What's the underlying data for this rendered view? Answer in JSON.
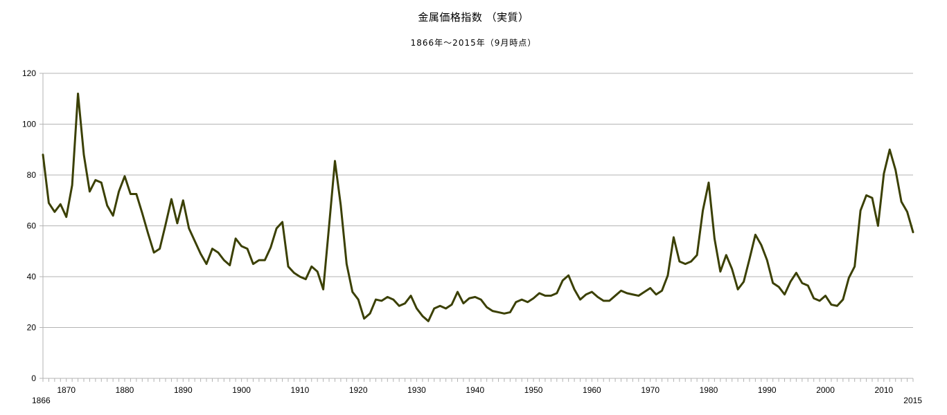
{
  "chart_data": {
    "type": "line",
    "title": "金属価格指数 （実質）",
    "subtitle": "1866年～2015年（9月時点）",
    "xlabel": "",
    "ylabel": "",
    "xlim": [
      1866,
      2015
    ],
    "ylim": [
      0,
      120
    ],
    "y_ticks": [
      "0",
      "20",
      "40",
      "60",
      "80",
      "100",
      "120"
    ],
    "x_ticks": [
      "1866",
      "1870",
      "1880",
      "1890",
      "1900",
      "1910",
      "1920",
      "1930",
      "1940",
      "1950",
      "1960",
      "1970",
      "1980",
      "1990",
      "2000",
      "2010",
      "2015"
    ],
    "grid": "horizontal",
    "legend": "none",
    "line_color": "#3b4004",
    "series": [
      {
        "values": [
          [
            1866,
            88
          ],
          [
            1867,
            69
          ],
          [
            1868,
            65.5
          ],
          [
            1869,
            68.5
          ],
          [
            1870,
            63.5
          ],
          [
            1871,
            76
          ],
          [
            1872,
            112
          ],
          [
            1873,
            88
          ],
          [
            1874,
            73.5
          ],
          [
            1875,
            78
          ],
          [
            1876,
            77
          ],
          [
            1877,
            68
          ],
          [
            1878,
            64
          ],
          [
            1879,
            73.5
          ],
          [
            1880,
            79.5
          ],
          [
            1881,
            72.5
          ],
          [
            1882,
            72.5
          ],
          [
            1883,
            65
          ],
          [
            1884,
            57
          ],
          [
            1885,
            49.5
          ],
          [
            1886,
            51
          ],
          [
            1887,
            60.5
          ],
          [
            1888,
            70.5
          ],
          [
            1889,
            61
          ],
          [
            1890,
            70
          ],
          [
            1891,
            59
          ],
          [
            1892,
            54
          ],
          [
            1893,
            49
          ],
          [
            1894,
            45
          ],
          [
            1895,
            51
          ],
          [
            1896,
            49.5
          ],
          [
            1897,
            46.5
          ],
          [
            1898,
            44.5
          ],
          [
            1899,
            55
          ],
          [
            1900,
            52
          ],
          [
            1901,
            51
          ],
          [
            1902,
            45
          ],
          [
            1903,
            46.5
          ],
          [
            1904,
            46.5
          ],
          [
            1905,
            51.5
          ],
          [
            1906,
            59
          ],
          [
            1907,
            61.5
          ],
          [
            1908,
            44
          ],
          [
            1909,
            41.5
          ],
          [
            1910,
            40
          ],
          [
            1911,
            39
          ],
          [
            1912,
            44
          ],
          [
            1913,
            42
          ],
          [
            1914,
            35
          ],
          [
            1915,
            60
          ],
          [
            1916,
            85.5
          ],
          [
            1917,
            68
          ],
          [
            1918,
            45
          ],
          [
            1919,
            34
          ],
          [
            1920,
            31
          ],
          [
            1921,
            23.5
          ],
          [
            1922,
            25.5
          ],
          [
            1923,
            31
          ],
          [
            1924,
            30.5
          ],
          [
            1925,
            32
          ],
          [
            1926,
            31
          ],
          [
            1927,
            28.5
          ],
          [
            1928,
            29.5
          ],
          [
            1929,
            32.5
          ],
          [
            1930,
            27.5
          ],
          [
            1931,
            24.5
          ],
          [
            1932,
            22.5
          ],
          [
            1933,
            27.5
          ],
          [
            1934,
            28.5
          ],
          [
            1935,
            27.5
          ],
          [
            1936,
            29
          ],
          [
            1937,
            34
          ],
          [
            1938,
            29.5
          ],
          [
            1939,
            31.5
          ],
          [
            1940,
            32
          ],
          [
            1941,
            31
          ],
          [
            1942,
            28
          ],
          [
            1943,
            26.5
          ],
          [
            1944,
            26
          ],
          [
            1945,
            25.5
          ],
          [
            1946,
            26
          ],
          [
            1947,
            30
          ],
          [
            1948,
            31
          ],
          [
            1949,
            30
          ],
          [
            1950,
            31.5
          ],
          [
            1951,
            33.5
          ],
          [
            1952,
            32.5
          ],
          [
            1953,
            32.5
          ],
          [
            1954,
            33.5
          ],
          [
            1955,
            38.5
          ],
          [
            1956,
            40.5
          ],
          [
            1957,
            35
          ],
          [
            1958,
            31
          ],
          [
            1959,
            33
          ],
          [
            1960,
            34
          ],
          [
            1961,
            32
          ],
          [
            1962,
            30.5
          ],
          [
            1963,
            30.5
          ],
          [
            1964,
            32.5
          ],
          [
            1965,
            34.5
          ],
          [
            1966,
            33.5
          ],
          [
            1967,
            33
          ],
          [
            1968,
            32.5
          ],
          [
            1969,
            34
          ],
          [
            1970,
            35.5
          ],
          [
            1971,
            33
          ],
          [
            1972,
            34.5
          ],
          [
            1973,
            40.5
          ],
          [
            1974,
            55.5
          ],
          [
            1975,
            46
          ],
          [
            1976,
            45
          ],
          [
            1977,
            46
          ],
          [
            1978,
            48.5
          ],
          [
            1979,
            66
          ],
          [
            1980,
            77
          ],
          [
            1981,
            55
          ],
          [
            1982,
            42
          ],
          [
            1983,
            48.5
          ],
          [
            1984,
            43
          ],
          [
            1985,
            35
          ],
          [
            1986,
            38
          ],
          [
            1987,
            47
          ],
          [
            1988,
            56.5
          ],
          [
            1989,
            52.5
          ],
          [
            1990,
            46.5
          ],
          [
            1991,
            37.5
          ],
          [
            1992,
            36
          ],
          [
            1993,
            33
          ],
          [
            1994,
            38
          ],
          [
            1995,
            41.5
          ],
          [
            1996,
            37.5
          ],
          [
            1997,
            36.5
          ],
          [
            1998,
            31.5
          ],
          [
            1999,
            30.5
          ],
          [
            2000,
            32.5
          ],
          [
            2001,
            29
          ],
          [
            2002,
            28.5
          ],
          [
            2003,
            31
          ],
          [
            2004,
            39.5
          ],
          [
            2005,
            44
          ],
          [
            2006,
            66
          ],
          [
            2007,
            72
          ],
          [
            2008,
            71
          ],
          [
            2009,
            60
          ],
          [
            2010,
            80.5
          ],
          [
            2011,
            90
          ],
          [
            2012,
            82
          ],
          [
            2013,
            69.5
          ],
          [
            2014,
            65.5
          ],
          [
            2015,
            57.5
          ]
        ]
      }
    ]
  }
}
